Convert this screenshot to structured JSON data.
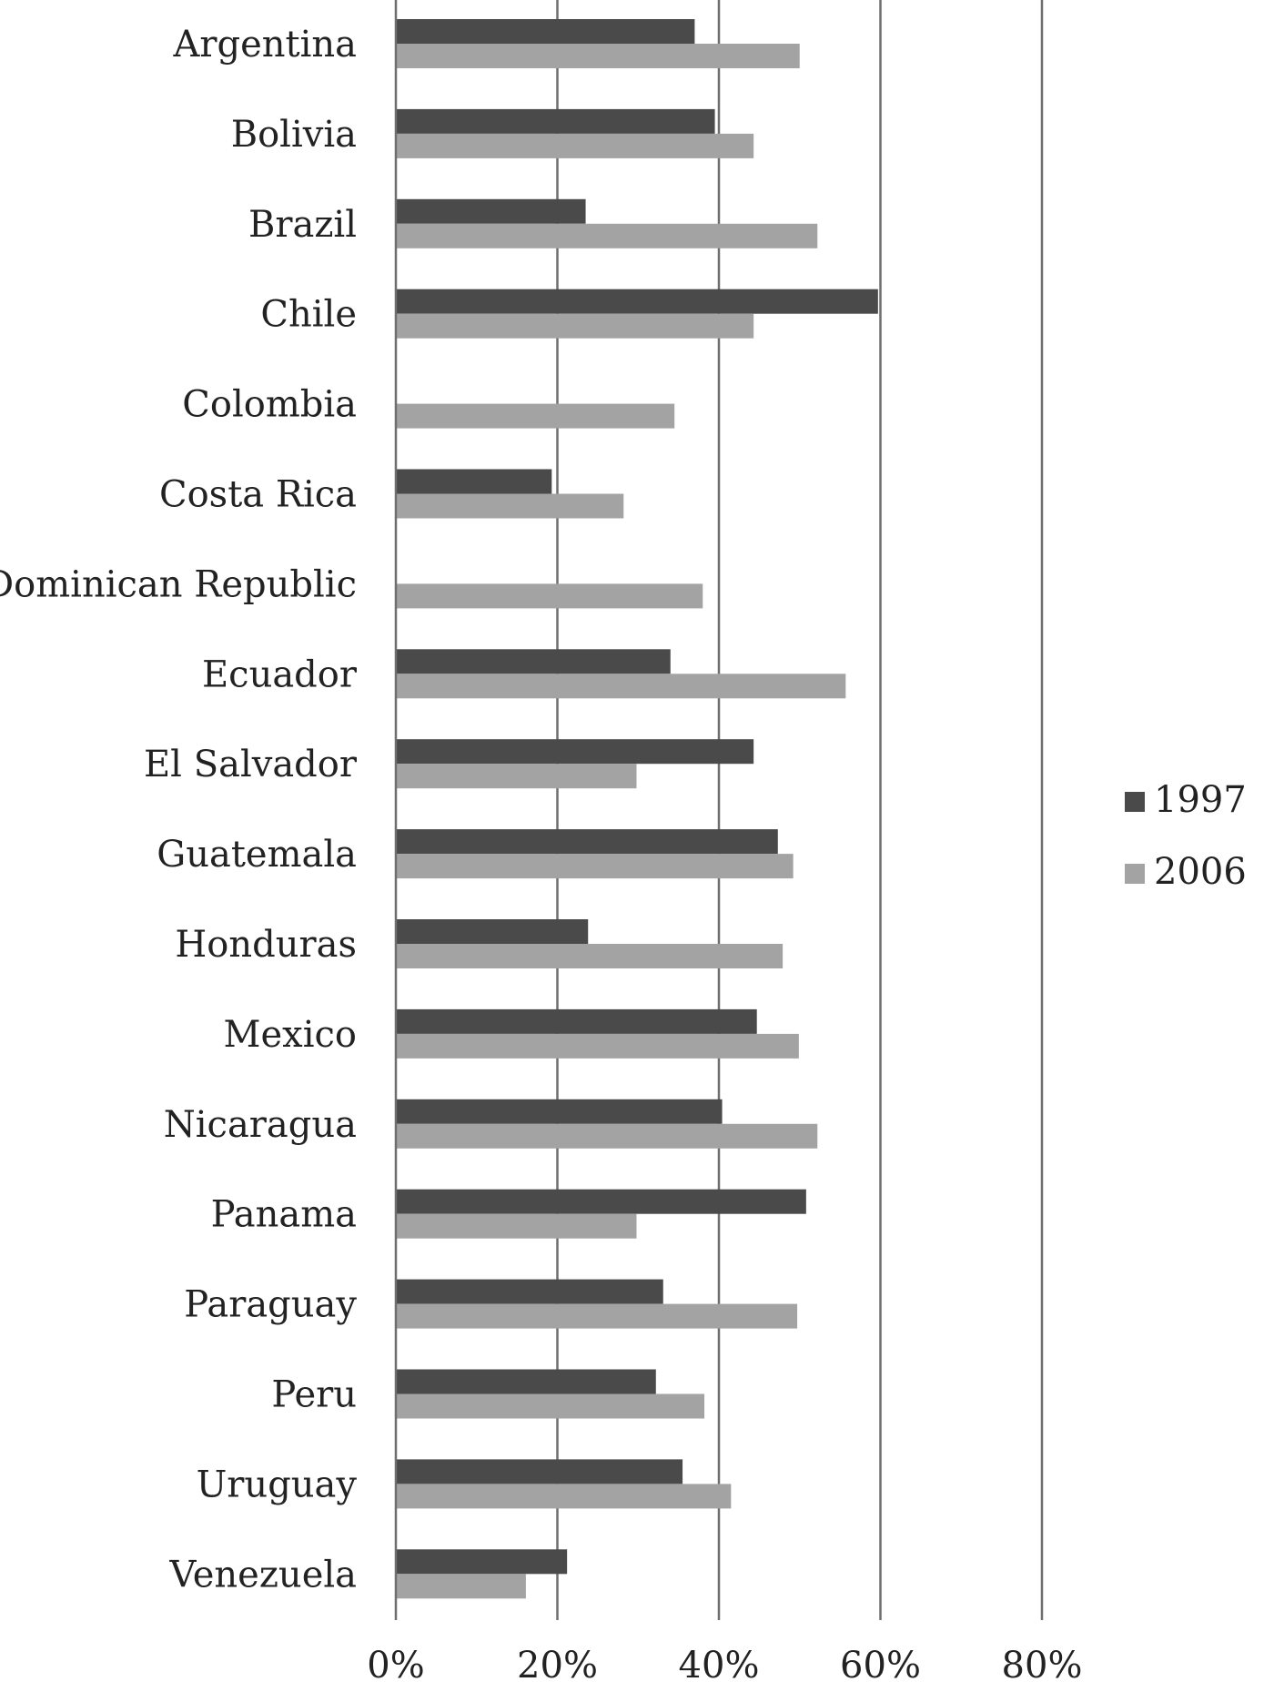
{
  "chart_data": {
    "type": "bar",
    "orientation": "horizontal",
    "categories": [
      "Argentina",
      "Bolivia",
      "Brazil",
      "Chile",
      "Colombia",
      "Costa Rica",
      "Dominican Republic",
      "Ecuador",
      "El Salvador",
      "Guatemala",
      "Honduras",
      "Mexico",
      "Nicaragua",
      "Panama",
      "Paraguay",
      "Peru",
      "Uruguay",
      "Venezuela"
    ],
    "series": [
      {
        "name": "1997",
        "color": "#4a4a4a",
        "values": [
          37,
          39.5,
          23.5,
          59.7,
          null,
          19.3,
          null,
          34,
          44.3,
          47.3,
          23.8,
          44.7,
          40.4,
          50.8,
          33.1,
          32.2,
          35.5,
          21.2
        ]
      },
      {
        "name": "2006",
        "color": "#a3a3a3",
        "values": [
          50,
          44.3,
          52.2,
          44.3,
          34.5,
          28.2,
          38,
          55.7,
          29.8,
          49.2,
          47.9,
          49.9,
          52.2,
          29.8,
          49.7,
          38.2,
          41.5,
          16.1
        ]
      }
    ],
    "xlim": [
      0,
      80
    ],
    "xticks": [
      "0%",
      "20%",
      "40%",
      "60%",
      "80%"
    ],
    "title": "",
    "xlabel": "",
    "ylabel": "",
    "grid": true,
    "legend": "right"
  }
}
